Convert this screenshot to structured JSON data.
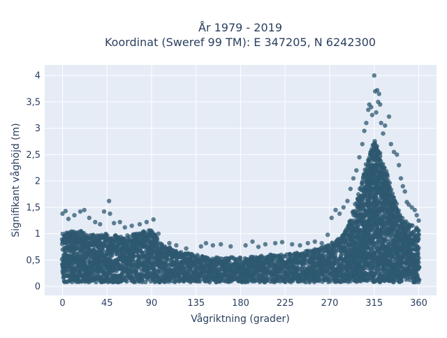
{
  "chart_data": {
    "type": "scatter",
    "title_line1": "År 1979 - 2019",
    "title_line2": "Koordinat (Sweref 99 TM): E 347205, N 6242300",
    "xlabel": "Vågriktning (grader)",
    "ylabel": "Signifikant våghöjd (m)",
    "xlim": [
      -18,
      378
    ],
    "ylim": [
      -0.17,
      4.2
    ],
    "x_ticks": [
      0,
      45,
      90,
      135,
      180,
      225,
      270,
      315,
      360
    ],
    "x_tick_labels": [
      "0",
      "45",
      "90",
      "135",
      "180",
      "225",
      "270",
      "315",
      "360"
    ],
    "y_ticks": [
      0,
      0.5,
      1,
      1.5,
      2,
      2.5,
      3,
      3.5,
      4
    ],
    "y_tick_labels": [
      "0",
      "0,5",
      "1",
      "1,5",
      "2",
      "2,5",
      "3",
      "3,5",
      "4"
    ],
    "grid": true,
    "marker_color": "#2e5870",
    "plot_background": "#e5ecf6",
    "envelope": {
      "x": [
        0,
        10,
        20,
        30,
        45,
        60,
        75,
        90,
        100,
        120,
        135,
        150,
        180,
        210,
        225,
        240,
        255,
        270,
        285,
        295,
        305,
        315,
        325,
        335,
        345,
        350,
        360
      ],
      "upper_core": [
        1.0,
        1.05,
        1.05,
        1.0,
        1.0,
        0.95,
        1.0,
        1.1,
        0.8,
        0.65,
        0.6,
        0.55,
        0.55,
        0.6,
        0.6,
        0.65,
        0.7,
        0.8,
        1.0,
        1.5,
        2.2,
        2.8,
        2.3,
        1.7,
        1.3,
        1.2,
        1.1
      ],
      "lower": 0.08
    },
    "points": [
      {
        "x": 0,
        "y": 1.38
      },
      {
        "x": 3,
        "y": 1.43
      },
      {
        "x": 6,
        "y": 1.28
      },
      {
        "x": 12,
        "y": 1.35
      },
      {
        "x": 18,
        "y": 1.42
      },
      {
        "x": 22,
        "y": 1.45
      },
      {
        "x": 27,
        "y": 1.3
      },
      {
        "x": 33,
        "y": 1.22
      },
      {
        "x": 38,
        "y": 1.18
      },
      {
        "x": 42,
        "y": 1.42
      },
      {
        "x": 47,
        "y": 1.62
      },
      {
        "x": 48,
        "y": 1.38
      },
      {
        "x": 52,
        "y": 1.2
      },
      {
        "x": 58,
        "y": 1.22
      },
      {
        "x": 63,
        "y": 1.12
      },
      {
        "x": 70,
        "y": 1.15
      },
      {
        "x": 78,
        "y": 1.18
      },
      {
        "x": 85,
        "y": 1.22
      },
      {
        "x": 92,
        "y": 1.27
      },
      {
        "x": 97,
        "y": 1.0
      },
      {
        "x": 108,
        "y": 0.82
      },
      {
        "x": 115,
        "y": 0.78
      },
      {
        "x": 125,
        "y": 0.72
      },
      {
        "x": 140,
        "y": 0.76
      },
      {
        "x": 145,
        "y": 0.82
      },
      {
        "x": 152,
        "y": 0.78
      },
      {
        "x": 160,
        "y": 0.8
      },
      {
        "x": 170,
        "y": 0.76
      },
      {
        "x": 185,
        "y": 0.78
      },
      {
        "x": 192,
        "y": 0.85
      },
      {
        "x": 198,
        "y": 0.75
      },
      {
        "x": 205,
        "y": 0.8
      },
      {
        "x": 215,
        "y": 0.82
      },
      {
        "x": 222,
        "y": 0.84
      },
      {
        "x": 232,
        "y": 0.8
      },
      {
        "x": 240,
        "y": 0.78
      },
      {
        "x": 248,
        "y": 0.82
      },
      {
        "x": 255,
        "y": 0.85
      },
      {
        "x": 262,
        "y": 0.82
      },
      {
        "x": 268,
        "y": 0.98
      },
      {
        "x": 272,
        "y": 1.3
      },
      {
        "x": 276,
        "y": 1.45
      },
      {
        "x": 280,
        "y": 1.38
      },
      {
        "x": 284,
        "y": 1.5
      },
      {
        "x": 288,
        "y": 1.62
      },
      {
        "x": 291,
        "y": 1.85
      },
      {
        "x": 294,
        "y": 2.05
      },
      {
        "x": 297,
        "y": 2.2
      },
      {
        "x": 300,
        "y": 2.45
      },
      {
        "x": 303,
        "y": 2.7
      },
      {
        "x": 305,
        "y": 2.95
      },
      {
        "x": 307,
        "y": 3.1
      },
      {
        "x": 309,
        "y": 3.35
      },
      {
        "x": 310,
        "y": 3.45
      },
      {
        "x": 312,
        "y": 3.4
      },
      {
        "x": 313,
        "y": 3.25
      },
      {
        "x": 315,
        "y": 4.0
      },
      {
        "x": 316,
        "y": 3.7
      },
      {
        "x": 318,
        "y": 3.72
      },
      {
        "x": 320,
        "y": 3.65
      },
      {
        "x": 319,
        "y": 3.5
      },
      {
        "x": 321,
        "y": 3.45
      },
      {
        "x": 317,
        "y": 3.3
      },
      {
        "x": 322,
        "y": 3.1
      },
      {
        "x": 324,
        "y": 2.9
      },
      {
        "x": 326,
        "y": 3.05
      },
      {
        "x": 330,
        "y": 3.22
      },
      {
        "x": 332,
        "y": 2.7
      },
      {
        "x": 335,
        "y": 2.55
      },
      {
        "x": 338,
        "y": 2.5
      },
      {
        "x": 340,
        "y": 2.3
      },
      {
        "x": 342,
        "y": 2.05
      },
      {
        "x": 344,
        "y": 1.9
      },
      {
        "x": 346,
        "y": 1.8
      },
      {
        "x": 348,
        "y": 1.6
      },
      {
        "x": 350,
        "y": 1.55
      },
      {
        "x": 353,
        "y": 1.5
      },
      {
        "x": 356,
        "y": 1.45
      },
      {
        "x": 358,
        "y": 1.35
      },
      {
        "x": 360,
        "y": 1.25
      }
    ]
  }
}
